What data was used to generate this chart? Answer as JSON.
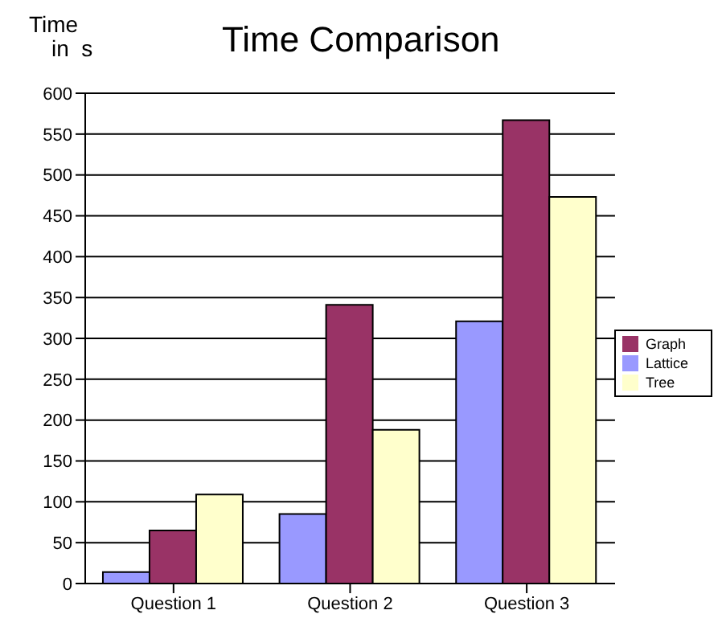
{
  "chart_data": {
    "type": "bar",
    "title": "Time Comparison",
    "ylabel": "Time in s",
    "categories": [
      "Question 1",
      "Question 2",
      "Question 3"
    ],
    "series": [
      {
        "name": "Lattice",
        "color": "#9999ff",
        "values": [
          14,
          85,
          321
        ]
      },
      {
        "name": "Graph",
        "color": "#993366",
        "values": [
          65,
          341,
          567
        ]
      },
      {
        "name": "Tree",
        "color": "#ffffcc",
        "values": [
          109,
          188,
          473
        ]
      }
    ],
    "ylim": [
      0,
      600
    ],
    "yticks": [
      0,
      50,
      100,
      150,
      200,
      250,
      300,
      350,
      400,
      450,
      500,
      550,
      600
    ],
    "grid": "y",
    "legend": "right"
  }
}
